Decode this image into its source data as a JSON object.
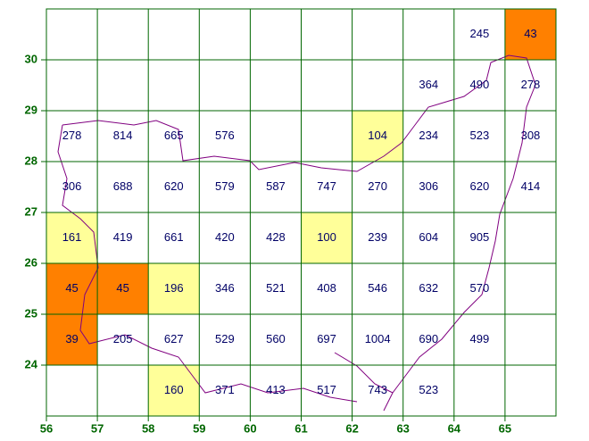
{
  "map": {
    "xlim": [
      56,
      66
    ],
    "ylim": [
      23,
      31
    ],
    "xticks": [
      56,
      57,
      58,
      59,
      60,
      61,
      62,
      63,
      64,
      65
    ],
    "yticks": [
      24,
      25,
      26,
      27,
      28,
      29,
      30
    ],
    "grid_color": "#006600",
    "tick_color": "#006600",
    "text_color": "#000066",
    "rows": [
      {
        "lat": 30,
        "cells": [
          {
            "lon": 64,
            "value": 245
          },
          {
            "lon": 65,
            "value": 43,
            "color": "#ff8000"
          }
        ]
      },
      {
        "lat": 29,
        "cells": [
          {
            "lon": 63,
            "value": 364
          },
          {
            "lon": 64,
            "value": 490
          },
          {
            "lon": 65,
            "value": 278
          }
        ]
      },
      {
        "lat": 28,
        "cells": [
          {
            "lon": 56,
            "value": 278
          },
          {
            "lon": 57,
            "value": 814
          },
          {
            "lon": 58,
            "value": 665
          },
          {
            "lon": 59,
            "value": 576
          },
          {
            "lon": 62,
            "value": 104,
            "color": "#ffff99"
          },
          {
            "lon": 63,
            "value": 234
          },
          {
            "lon": 64,
            "value": 523
          },
          {
            "lon": 65,
            "value": 308
          }
        ]
      },
      {
        "lat": 27,
        "cells": [
          {
            "lon": 56,
            "value": 306
          },
          {
            "lon": 57,
            "value": 688
          },
          {
            "lon": 58,
            "value": 620
          },
          {
            "lon": 59,
            "value": 579
          },
          {
            "lon": 60,
            "value": 587
          },
          {
            "lon": 61,
            "value": 747
          },
          {
            "lon": 62,
            "value": 270
          },
          {
            "lon": 63,
            "value": 306
          },
          {
            "lon": 64,
            "value": 620
          },
          {
            "lon": 65,
            "value": 414
          }
        ]
      },
      {
        "lat": 26,
        "cells": [
          {
            "lon": 56,
            "value": 161,
            "color": "#ffff99"
          },
          {
            "lon": 57,
            "value": 419
          },
          {
            "lon": 58,
            "value": 661
          },
          {
            "lon": 59,
            "value": 420
          },
          {
            "lon": 60,
            "value": 428
          },
          {
            "lon": 61,
            "value": 100,
            "color": "#ffff99"
          },
          {
            "lon": 62,
            "value": 239
          },
          {
            "lon": 63,
            "value": 604
          },
          {
            "lon": 64,
            "value": 905
          }
        ]
      },
      {
        "lat": 25,
        "cells": [
          {
            "lon": 56,
            "value": 45,
            "color": "#ff8000"
          },
          {
            "lon": 57,
            "value": 45,
            "color": "#ff8000"
          },
          {
            "lon": 58,
            "value": 196,
            "color": "#ffff99"
          },
          {
            "lon": 59,
            "value": 346
          },
          {
            "lon": 60,
            "value": 521
          },
          {
            "lon": 61,
            "value": 408
          },
          {
            "lon": 62,
            "value": 546
          },
          {
            "lon": 63,
            "value": 632
          },
          {
            "lon": 64,
            "value": 570
          }
        ]
      },
      {
        "lat": 24,
        "cells": [
          {
            "lon": 56,
            "value": 39,
            "color": "#ff8000"
          },
          {
            "lon": 57,
            "value": 205
          },
          {
            "lon": 58,
            "value": 627
          },
          {
            "lon": 59,
            "value": 529
          },
          {
            "lon": 60,
            "value": 560
          },
          {
            "lon": 61,
            "value": 697
          },
          {
            "lon": 62,
            "value": 1004
          },
          {
            "lon": 63,
            "value": 690
          },
          {
            "lon": 64,
            "value": 499
          }
        ]
      },
      {
        "lat": 23,
        "cells": [
          {
            "lon": 58,
            "value": 160,
            "color": "#ffff99"
          },
          {
            "lon": 59,
            "value": 371
          },
          {
            "lon": 60,
            "value": 413
          },
          {
            "lon": 61,
            "value": 517
          },
          {
            "lon": 62,
            "value": 743
          },
          {
            "lon": 63,
            "value": 523
          }
        ]
      }
    ]
  }
}
